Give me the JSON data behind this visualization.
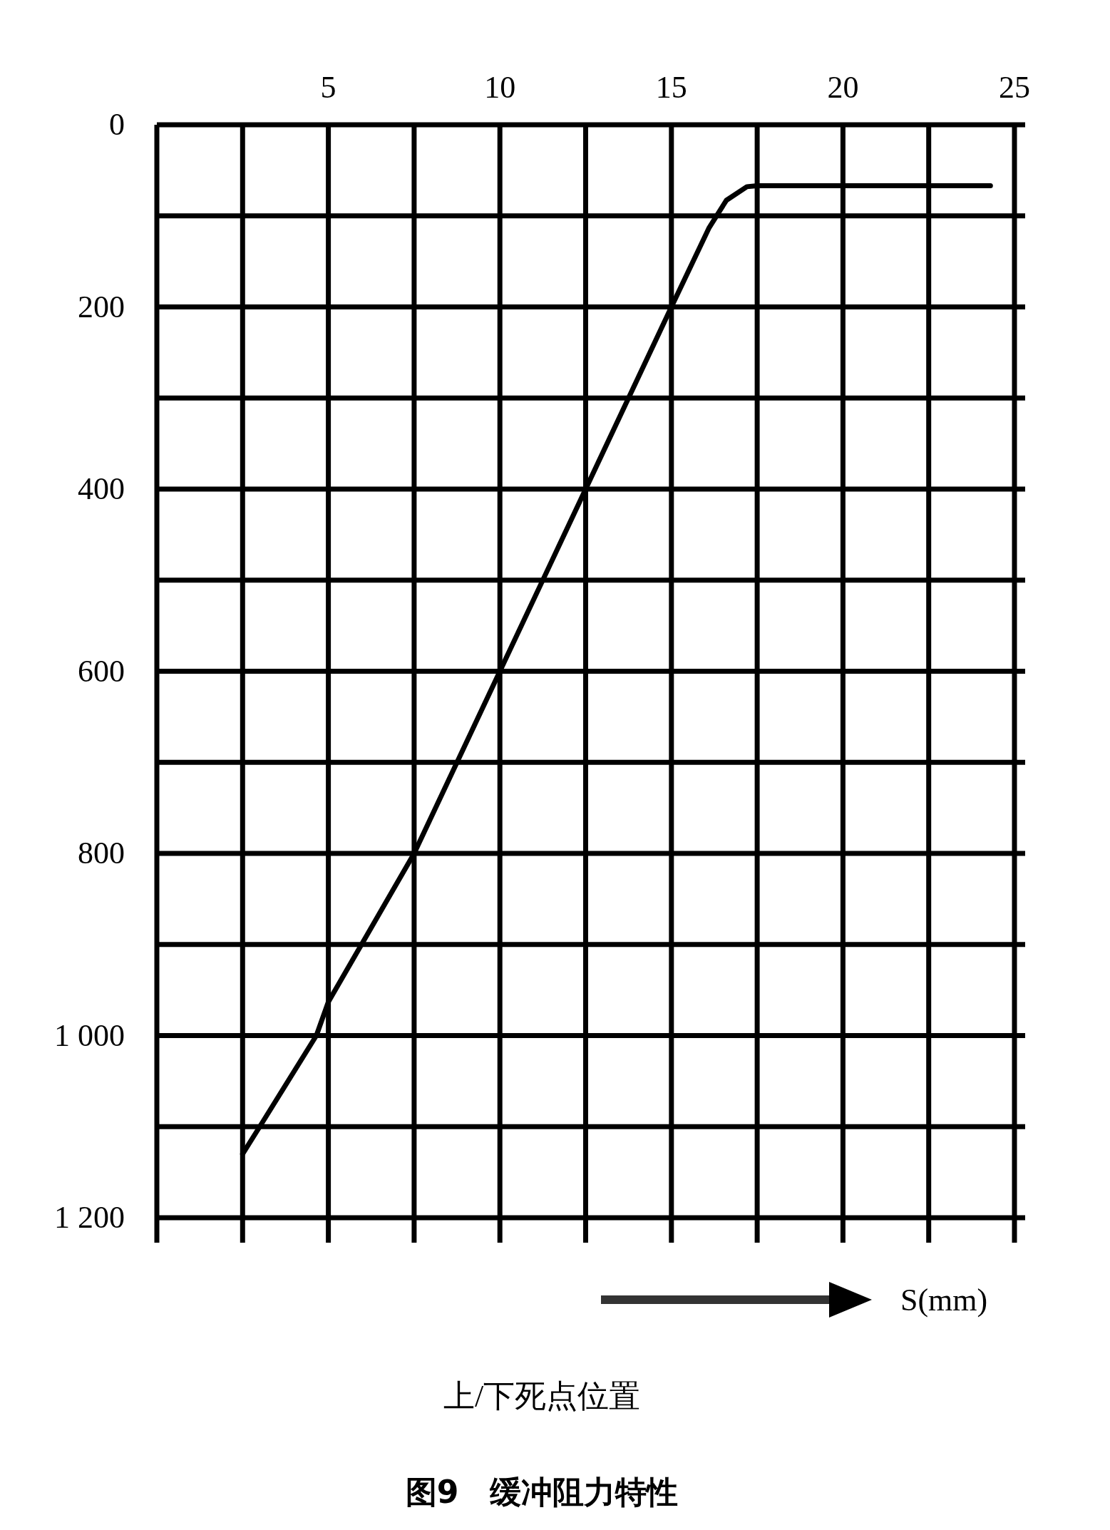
{
  "chart_data": {
    "type": "line",
    "title": "图9　缓冲阻力特性",
    "xlabel": "S(mm)",
    "annotations": [
      "上/下死点位置"
    ],
    "x": [
      2.5,
      3,
      4.65,
      5,
      7.5,
      10,
      12.5,
      15,
      16.1,
      16.6,
      17.2,
      17.5,
      24.3
    ],
    "series": [
      {
        "color": "#000000",
        "values": [
          1130,
          1100,
          1000,
          963,
          800,
          600,
          400,
          200,
          113,
          83,
          68,
          67,
          67
        ]
      }
    ],
    "xlim": [
      0,
      25
    ],
    "xticks": [
      {
        "value": 0,
        "label": null
      },
      {
        "value": 2.5,
        "label": null
      },
      5,
      {
        "value": 7.5,
        "label": null
      },
      10,
      {
        "value": 12.5,
        "label": null
      },
      15,
      {
        "value": 17.5,
        "label": null
      },
      20,
      {
        "value": 22.5,
        "label": null
      },
      25
    ],
    "ylim": [
      1200,
      0
    ],
    "yticks": [
      0,
      {
        "value": 100,
        "label": null
      },
      200,
      {
        "value": 300,
        "label": null
      },
      400,
      {
        "value": 500,
        "label": null
      },
      600,
      {
        "value": 700,
        "label": null
      },
      800,
      {
        "value": 900,
        "label": null
      },
      {
        "value": 1000,
        "label": "1 000"
      },
      {
        "value": 1100,
        "label": null
      },
      {
        "value": 1200,
        "label": "1 200"
      }
    ],
    "grid": true,
    "marker": "none",
    "line_style": "solid"
  }
}
